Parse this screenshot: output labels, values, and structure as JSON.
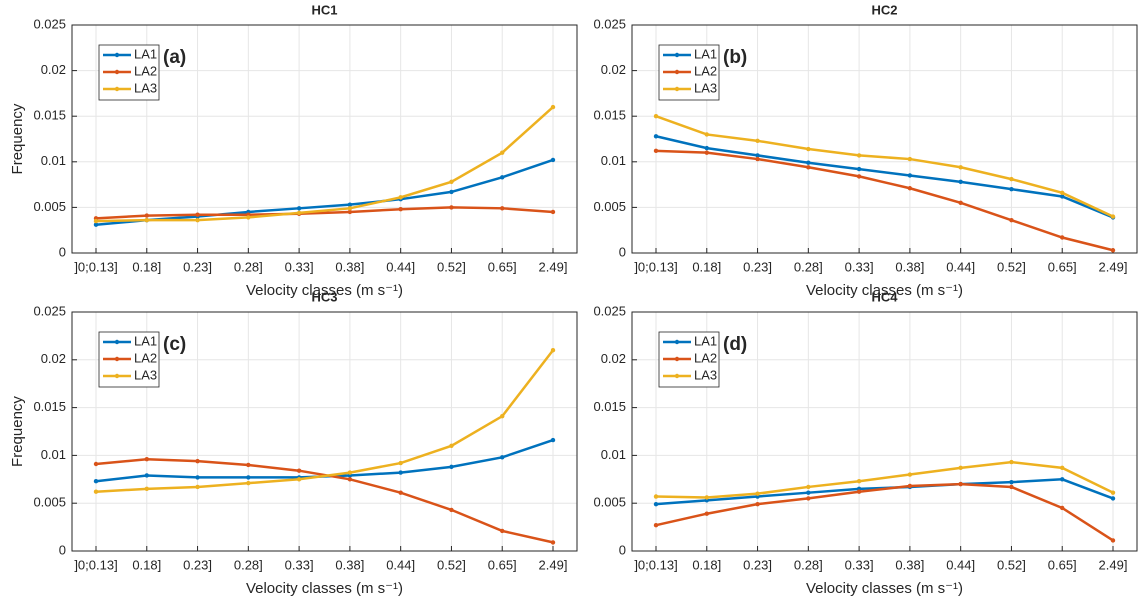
{
  "chart_data": [
    {
      "type": "line",
      "title": "HC1",
      "xlabel": "Velocity classes (m s⁻¹)",
      "ylabel": "Frequency",
      "annotation": "(a)",
      "legend": "upper left",
      "grid": true,
      "categories": [
        "]0;0.13]",
        "0.18]",
        "0.23]",
        "0.28]",
        "0.33]",
        "0.38]",
        "0.44]",
        "0.52]",
        "0.65]",
        "2.49]"
      ],
      "ylim": [
        0,
        0.025
      ],
      "yticks": [
        0,
        0.005,
        0.01,
        0.015,
        0.02,
        0.025
      ],
      "series": [
        {
          "name": "LA1",
          "color": "#0072bd",
          "values": [
            0.0031,
            0.0036,
            0.004,
            0.0045,
            0.0049,
            0.0053,
            0.0059,
            0.0067,
            0.0083,
            0.0102
          ]
        },
        {
          "name": "LA2",
          "color": "#d95319",
          "values": [
            0.0038,
            0.0041,
            0.0042,
            0.0042,
            0.0043,
            0.0045,
            0.0048,
            0.005,
            0.0049,
            0.0045
          ]
        },
        {
          "name": "LA3",
          "color": "#edb120",
          "values": [
            0.0035,
            0.0036,
            0.0036,
            0.0039,
            0.0044,
            0.0049,
            0.0061,
            0.0078,
            0.011,
            0.016
          ]
        }
      ]
    },
    {
      "type": "line",
      "title": "HC2",
      "xlabel": "Velocity classes (m s⁻¹)",
      "annotation": "(b)",
      "legend": "upper left",
      "grid": true,
      "categories": [
        "]0;0.13]",
        "0.18]",
        "0.23]",
        "0.28]",
        "0.33]",
        "0.38]",
        "0.44]",
        "0.52]",
        "0.65]",
        "2.49]"
      ],
      "ylim": [
        0,
        0.025
      ],
      "yticks": [
        0,
        0.005,
        0.01,
        0.015,
        0.02,
        0.025
      ],
      "series": [
        {
          "name": "LA1",
          "color": "#0072bd",
          "values": [
            0.0128,
            0.0115,
            0.0107,
            0.0099,
            0.0092,
            0.0085,
            0.0078,
            0.007,
            0.0062,
            0.0039
          ]
        },
        {
          "name": "LA2",
          "color": "#d95319",
          "values": [
            0.0112,
            0.011,
            0.0103,
            0.0094,
            0.0084,
            0.0071,
            0.0055,
            0.0036,
            0.0017,
            0.0003
          ]
        },
        {
          "name": "LA3",
          "color": "#edb120",
          "values": [
            0.015,
            0.013,
            0.0123,
            0.0114,
            0.0107,
            0.0103,
            0.0094,
            0.0081,
            0.0066,
            0.004
          ]
        }
      ]
    },
    {
      "type": "line",
      "title": "HC3",
      "xlabel": "Velocity classes (m s⁻¹)",
      "ylabel": "Frequency",
      "annotation": "(c)",
      "legend": "upper left",
      "grid": true,
      "categories": [
        "]0;0.13]",
        "0.18]",
        "0.23]",
        "0.28]",
        "0.33]",
        "0.38]",
        "0.44]",
        "0.52]",
        "0.65]",
        "2.49]"
      ],
      "ylim": [
        0,
        0.025
      ],
      "yticks": [
        0,
        0.005,
        0.01,
        0.015,
        0.02,
        0.025
      ],
      "series": [
        {
          "name": "LA1",
          "color": "#0072bd",
          "values": [
            0.0073,
            0.0079,
            0.0077,
            0.0077,
            0.0077,
            0.0079,
            0.0082,
            0.0088,
            0.0098,
            0.0116
          ]
        },
        {
          "name": "LA2",
          "color": "#d95319",
          "values": [
            0.0091,
            0.0096,
            0.0094,
            0.009,
            0.0084,
            0.0075,
            0.0061,
            0.0043,
            0.0021,
            0.0009
          ]
        },
        {
          "name": "LA3",
          "color": "#edb120",
          "values": [
            0.0062,
            0.0065,
            0.0067,
            0.0071,
            0.0075,
            0.0082,
            0.0092,
            0.011,
            0.0141,
            0.021
          ]
        }
      ]
    },
    {
      "type": "line",
      "title": "HC4",
      "xlabel": "Velocity classes (m s⁻¹)",
      "annotation": "(d)",
      "legend": "upper left",
      "grid": true,
      "categories": [
        "]0;0.13]",
        "0.18]",
        "0.23]",
        "0.28]",
        "0.33]",
        "0.38]",
        "0.44]",
        "0.52]",
        "0.65]",
        "2.49]"
      ],
      "ylim": [
        0,
        0.025
      ],
      "yticks": [
        0,
        0.005,
        0.01,
        0.015,
        0.02,
        0.025
      ],
      "series": [
        {
          "name": "LA1",
          "color": "#0072bd",
          "values": [
            0.0049,
            0.0053,
            0.0057,
            0.0061,
            0.0065,
            0.0067,
            0.007,
            0.0072,
            0.0075,
            0.0055
          ]
        },
        {
          "name": "LA2",
          "color": "#d95319",
          "values": [
            0.0027,
            0.0039,
            0.0049,
            0.0055,
            0.0062,
            0.0068,
            0.007,
            0.0067,
            0.0045,
            0.0011
          ]
        },
        {
          "name": "LA3",
          "color": "#edb120",
          "values": [
            0.0057,
            0.0056,
            0.006,
            0.0067,
            0.0073,
            0.008,
            0.0087,
            0.0093,
            0.0087,
            0.0061
          ]
        }
      ]
    }
  ]
}
